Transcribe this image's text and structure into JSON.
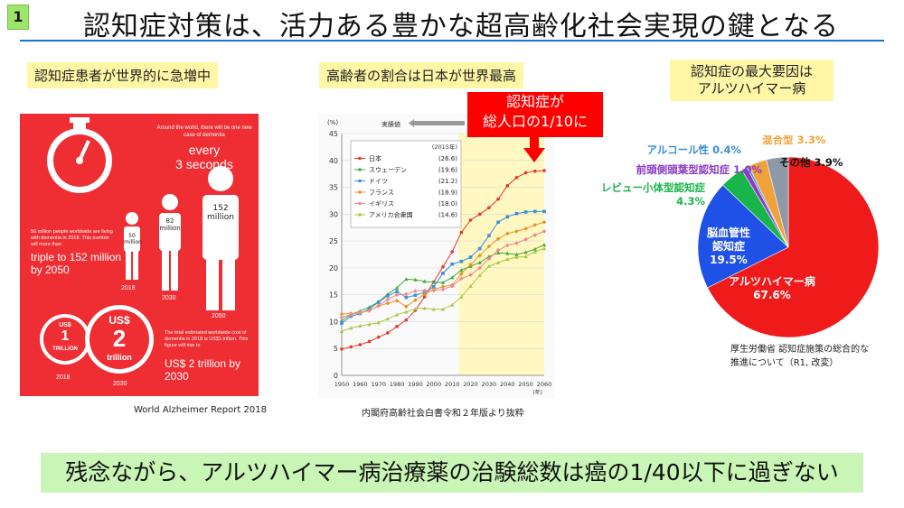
{
  "slide": {
    "number": "1",
    "title": "認知症対策は、活力ある豊かな超高齢化社会実現の鍵となる",
    "bottom_message": "残念ながら、アルツハイマー病治療薬の治験総数は癌の1/40以下に過ぎない"
  },
  "left_panel": {
    "label": "認知症患者が世界的に急増中",
    "infographic": {
      "case_note": "Around the world, there will be one new case of dementia",
      "every": "every",
      "seconds": "3 seconds",
      "living_note": "50 million people worldwide are living with dementia in 2018. This number will more than",
      "triple": "triple to 152 million by 2050",
      "pop_2018": "50 million",
      "pop_2030": "82 million",
      "pop_2050": "152 million",
      "year_2018": "2018",
      "year_2030": "2030",
      "year_2050": "2050",
      "coin_small_top": "US$",
      "coin_small_num": "1",
      "coin_small_unit": "TRILLION",
      "coin_big_top": "US$",
      "coin_big_num": "2",
      "coin_big_unit": "trillion",
      "cost_note": "The total estimated worldwide cost of dementia in 2018 is US$1 trillion. This figure will rise to",
      "cost_big": "US$ 2 trillion by 2030",
      "coin_year_2018": "2018",
      "coin_year_2030": "2030"
    },
    "caption": "World Alzheimer Report 2018"
  },
  "middle_panel": {
    "label": "高齢者の割合は日本が世界最高",
    "callout_line1": "認知症が",
    "callout_line2": "総人口の1/10に",
    "caption": "内閣府高齢社会白書令和２年版より抜粋"
  },
  "chart_data": [
    {
      "type": "line",
      "ylabel": "(%)",
      "xlabel": "(年)",
      "ylim": [
        0,
        45
      ],
      "x": [
        1950,
        1955,
        1960,
        1965,
        1970,
        1975,
        1980,
        1985,
        1990,
        1995,
        2000,
        2005,
        2010,
        2015,
        2020,
        2025,
        2030,
        2035,
        2040,
        2045,
        2050,
        2055,
        2060
      ],
      "legend_title": "(2015年)",
      "legend_placement": "top-left",
      "measured_label": "実績値",
      "series": [
        {
          "name": "日本",
          "value_label": "(26.6)",
          "color": "#e8382b",
          "values": [
            4.9,
            5.3,
            5.7,
            6.3,
            7.1,
            7.9,
            9.1,
            10.3,
            12.1,
            14.6,
            17.4,
            20.2,
            23.0,
            26.6,
            28.9,
            30.0,
            31.2,
            32.8,
            35.3,
            36.8,
            37.7,
            38.0,
            38.1
          ]
        },
        {
          "name": "スウェーデン",
          "value_label": "(19.6)",
          "color": "#49a943",
          "values": [
            10.2,
            11.3,
            12.0,
            12.7,
            13.7,
            15.1,
            16.3,
            17.9,
            17.8,
            17.5,
            17.3,
            17.3,
            18.2,
            19.6,
            20.3,
            21.0,
            22.1,
            22.8,
            22.7,
            22.5,
            22.9,
            23.5,
            24.3
          ]
        },
        {
          "name": "ドイツ",
          "value_label": "(21.2)",
          "color": "#3a8fd8",
          "values": [
            9.7,
            11.0,
            11.5,
            12.4,
            13.6,
            14.8,
            15.6,
            14.5,
            14.9,
            15.5,
            16.5,
            19.0,
            20.7,
            21.2,
            22.0,
            23.6,
            26.0,
            28.5,
            29.5,
            30.1,
            30.4,
            30.5,
            30.5
          ]
        },
        {
          "name": "フランス",
          "value_label": "(18.9)",
          "color": "#e8932b",
          "values": [
            11.4,
            11.5,
            11.6,
            12.1,
            12.9,
            13.4,
            13.9,
            12.8,
            14.0,
            15.1,
            16.0,
            16.5,
            16.8,
            18.9,
            20.6,
            22.3,
            24.0,
            25.4,
            26.4,
            26.8,
            27.3,
            28.0,
            28.5
          ]
        },
        {
          "name": "イギリス",
          "value_label": "(18.0)",
          "color": "#ef8a8a",
          "values": [
            10.8,
            11.3,
            11.7,
            12.0,
            13.0,
            14.1,
            15.0,
            15.1,
            15.7,
            15.8,
            15.8,
            16.0,
            16.6,
            18.0,
            18.7,
            20.0,
            21.7,
            23.3,
            24.2,
            24.6,
            25.3,
            26.1,
            26.8
          ]
        },
        {
          "name": "アメリカ合衆国",
          "value_label": "(14.6)",
          "color": "#a8c944",
          "values": [
            8.2,
            8.8,
            9.2,
            9.5,
            9.8,
            10.5,
            11.3,
            11.8,
            12.4,
            12.5,
            12.3,
            12.3,
            13.1,
            14.6,
            16.6,
            18.6,
            20.3,
            21.0,
            21.6,
            22.0,
            22.1,
            23.0,
            23.6
          ]
        }
      ]
    },
    {
      "type": "pie",
      "categories": [
        "アルツハイマー病",
        "脳血管性認知症",
        "レビュー小体型認知症",
        "前頭側頭葉型認知症",
        "アルコール性",
        "混合型",
        "その他"
      ],
      "values": [
        67.6,
        19.5,
        4.3,
        1.0,
        0.4,
        3.3,
        3.9
      ],
      "value_labels": [
        "67.6%",
        "19.5%",
        "4.3%",
        "1.0%",
        "0.4%",
        "3.3%",
        "3.9%"
      ],
      "colors": [
        "#ef1b1b",
        "#1f51e6",
        "#18b54a",
        "#8a3bc2",
        "#3a8fd8",
        "#f0a23a",
        "#8d98a8"
      ]
    }
  ],
  "right_panel": {
    "label_line1": "認知症の最大要因は",
    "label_line2": "アルツハイマー病",
    "caption_line1": "厚生労働省 認知症施策の総合的な",
    "caption_line2": "推進について（R1, 改変）"
  }
}
